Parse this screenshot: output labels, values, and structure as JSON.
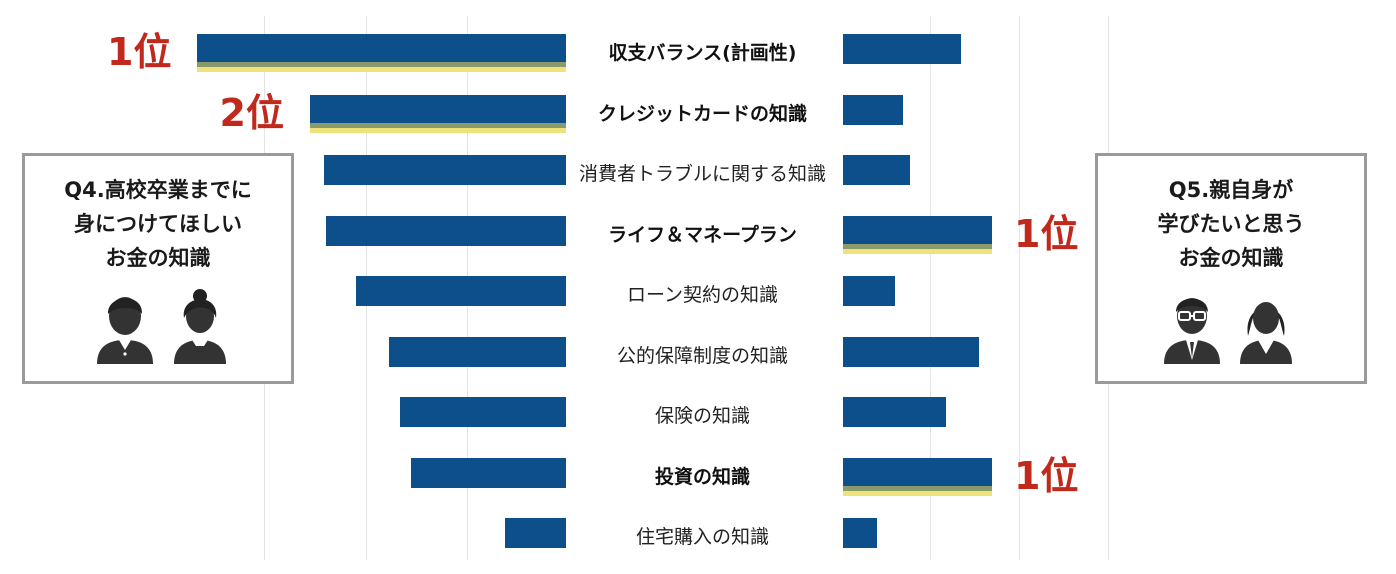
{
  "chart_data": {
    "type": "bar",
    "categories": [
      "収支バランス(計画性)",
      "クレジットカードの知識",
      "消費者トラブルに関する知識",
      "ライフ＆マネープラン",
      "ローン契約の知識",
      "公的保障制度の知識",
      "保険の知識",
      "投資の知識",
      "住宅購入の知識"
    ],
    "bold_categories": [
      0,
      1,
      3,
      7
    ],
    "series": [
      {
        "panel": "left",
        "values": [
          100,
          69.5,
          65.5,
          65,
          57,
          48,
          45,
          42,
          16.5
        ],
        "highlight": [
          0,
          1
        ],
        "ranks": [
          {
            "index": 0,
            "label": "1位"
          },
          {
            "index": 1,
            "label": "2位"
          }
        ]
      },
      {
        "panel": "right",
        "values": [
          79,
          40,
          45,
          100,
          35,
          91,
          69,
          100,
          23
        ],
        "highlight": [
          3,
          7
        ],
        "ranks": [
          {
            "index": 3,
            "label": "1位"
          },
          {
            "index": 7,
            "label": "1位"
          }
        ]
      }
    ],
    "grid": true,
    "colors": {
      "bar": "#0d4f8b",
      "highlight": "#f0e27a",
      "rank": "#c0291b"
    }
  },
  "panels": {
    "left": {
      "title_lines": [
        "Q4.高校卒業までに",
        "身につけてほしい",
        "お金の知識"
      ],
      "icons": [
        "student-boy-icon",
        "student-girl-icon"
      ]
    },
    "right": {
      "title_lines": [
        "Q5.親自身が",
        "学びたいと思う",
        "お金の知識"
      ],
      "icons": [
        "father-icon",
        "mother-icon"
      ]
    }
  }
}
